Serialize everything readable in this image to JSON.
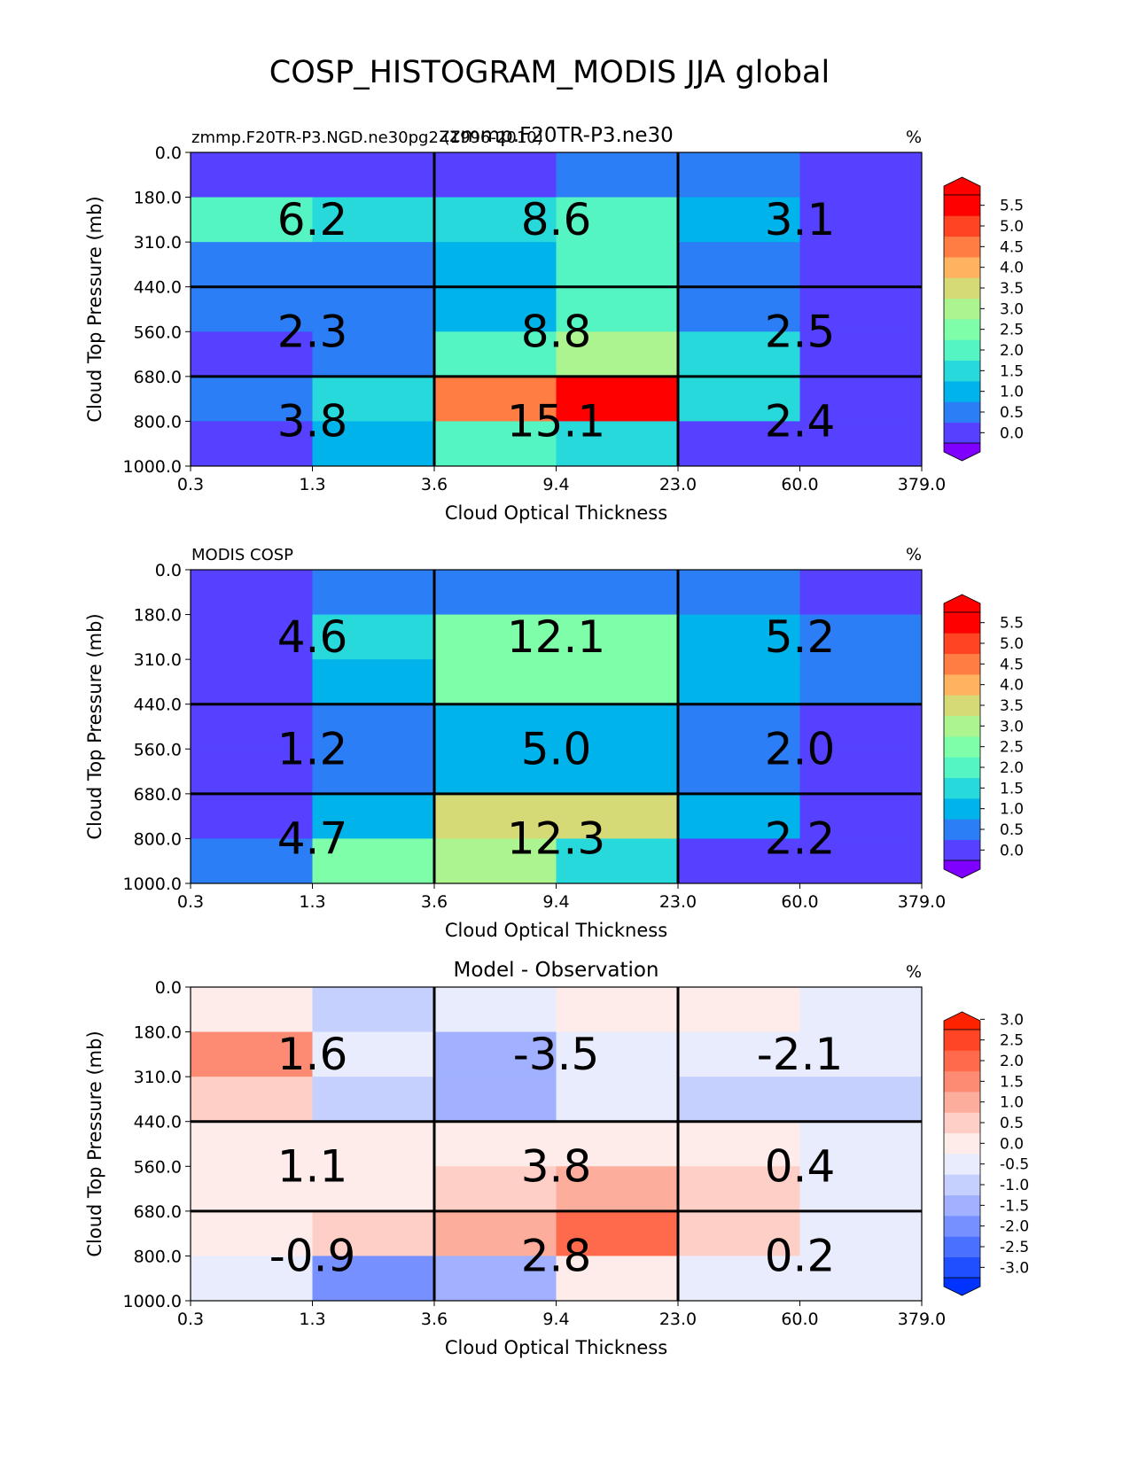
{
  "figure": {
    "title": "COSP_HISTOGRAM_MODIS JJA global"
  },
  "chart_data": [
    {
      "type": "heatmap",
      "panel": "test",
      "left_title": "zmmp.F20TR-P3.NGD.ne30pg2 (1996-2010)",
      "center_title": "zzmmp.F20TR-P3.ne30",
      "units": "%",
      "xlabel": "Cloud Optical Thickness",
      "ylabel": "Cloud Top Pressure (mb)",
      "x_ticks": [
        "0.3",
        "1.3",
        "3.6",
        "9.4",
        "23.0",
        "60.0",
        "379.0"
      ],
      "y_ticks": [
        "0.0",
        "180.0",
        "310.0",
        "440.0",
        "560.0",
        "680.0",
        "800.0",
        "1000.0"
      ],
      "colorbar_ticks": [
        "0.0",
        "0.5",
        "1.0",
        "1.5",
        "2.0",
        "2.5",
        "3.0",
        "3.5",
        "4.0",
        "4.5",
        "5.0",
        "5.5"
      ],
      "values": [
        [
          0.0,
          0.0,
          0.2,
          0.8,
          0.8,
          0.0
        ],
        [
          2.2,
          1.8,
          1.8,
          2.2,
          1.3,
          0.0
        ],
        [
          0.8,
          0.8,
          1.2,
          2.2,
          0.7,
          0.0
        ],
        [
          0.8,
          0.8,
          1.2,
          2.2,
          0.7,
          0.0
        ],
        [
          0.3,
          0.8,
          2.3,
          3.3,
          1.8,
          0.1
        ],
        [
          0.8,
          1.8,
          4.8,
          5.8,
          1.8,
          0.1
        ],
        [
          0.3,
          1.3,
          2.3,
          1.8,
          0.2,
          0.1
        ]
      ],
      "group_values": [
        [
          "6.2",
          "8.6",
          "3.1"
        ],
        [
          "2.3",
          "8.8",
          "2.5"
        ],
        [
          "3.8",
          "15.1",
          "2.4"
        ]
      ]
    },
    {
      "type": "heatmap",
      "panel": "reference",
      "left_title": "MODIS COSP",
      "center_title": "",
      "units": "%",
      "xlabel": "Cloud Optical Thickness",
      "ylabel": "Cloud Top Pressure (mb)",
      "x_ticks": [
        "0.3",
        "1.3",
        "3.6",
        "9.4",
        "23.0",
        "60.0",
        "379.0"
      ],
      "y_ticks": [
        "0.0",
        "180.0",
        "310.0",
        "440.0",
        "560.0",
        "680.0",
        "800.0",
        "1000.0"
      ],
      "colorbar_ticks": [
        "0.0",
        "0.5",
        "1.0",
        "1.5",
        "2.0",
        "2.5",
        "3.0",
        "3.5",
        "4.0",
        "4.5",
        "5.0",
        "5.5"
      ],
      "values": [
        [
          0.0,
          0.8,
          0.8,
          0.8,
          0.8,
          0.0
        ],
        [
          0.3,
          1.8,
          2.8,
          2.8,
          1.3,
          0.8
        ],
        [
          0.3,
          1.3,
          2.8,
          2.8,
          1.3,
          0.8
        ],
        [
          0.3,
          0.8,
          1.3,
          1.3,
          0.8,
          0.3
        ],
        [
          0.3,
          0.8,
          1.3,
          1.3,
          0.8,
          0.3
        ],
        [
          0.3,
          1.3,
          3.8,
          3.8,
          1.3,
          0.3
        ],
        [
          0.8,
          2.8,
          3.3,
          1.8,
          0.2,
          0.3
        ]
      ],
      "group_values": [
        [
          "4.6",
          "12.1",
          "5.2"
        ],
        [
          "1.2",
          "5.0",
          "2.0"
        ],
        [
          "4.7",
          "12.3",
          "2.2"
        ]
      ]
    },
    {
      "type": "heatmap",
      "panel": "difference",
      "left_title": "",
      "center_title": "Model - Observation",
      "units": "%",
      "xlabel": "Cloud Optical Thickness",
      "ylabel": "Cloud Top Pressure (mb)",
      "x_ticks": [
        "0.3",
        "1.3",
        "3.6",
        "9.4",
        "23.0",
        "60.0",
        "379.0"
      ],
      "y_ticks": [
        "0.0",
        "180.0",
        "310.0",
        "440.0",
        "560.0",
        "680.0",
        "800.0",
        "1000.0"
      ],
      "colorbar_ticks": [
        "-3.0",
        "-2.5",
        "-2.0",
        "-1.5",
        "-1.0",
        "-0.5",
        "0.0",
        "0.5",
        "1.0",
        "1.5",
        "2.0",
        "2.5",
        "3.0"
      ],
      "values": [
        [
          0.2,
          -0.7,
          -0.2,
          0.2,
          0.2,
          -0.2
        ],
        [
          1.7,
          -0.2,
          -1.2,
          -0.2,
          -0.2,
          -0.2
        ],
        [
          0.7,
          -0.7,
          -1.2,
          -0.2,
          -0.7,
          -0.7
        ],
        [
          0.2,
          0.2,
          0.2,
          0.2,
          0.2,
          -0.2
        ],
        [
          0.2,
          0.2,
          0.7,
          1.2,
          0.7,
          -0.2
        ],
        [
          0.2,
          0.7,
          1.2,
          2.2,
          0.7,
          -0.2
        ],
        [
          -0.2,
          -1.7,
          -1.2,
          0.2,
          -0.2,
          -0.2
        ]
      ],
      "group_values": [
        [
          "1.6",
          "-3.5",
          "-2.1"
        ],
        [
          "1.1",
          "3.8",
          "0.4"
        ],
        [
          "-0.9",
          "2.8",
          "0.2"
        ]
      ]
    }
  ],
  "colormaps": {
    "sequential": {
      "under": "#7f00ff",
      "over": "#ff0000",
      "colors": [
        "#5541ff",
        "#2b7ef6",
        "#00b4eb",
        "#27d9db",
        "#55f4c3",
        "#7ffea9",
        "#abf490",
        "#d5da77",
        "#ffb360",
        "#ff7d43",
        "#ff4424",
        "#ff0000"
      ]
    },
    "diverging": {
      "under": "#0033ff",
      "over": "#ff2200",
      "colors": [
        "#1f4fff",
        "#4a70ff",
        "#7690ff",
        "#a1b1ff",
        "#c5d0ff",
        "#e8ecfd",
        "#fdecea",
        "#fdcfc6",
        "#fdad9c",
        "#fd8a73",
        "#ff6a4d",
        "#ff4525"
      ]
    }
  }
}
